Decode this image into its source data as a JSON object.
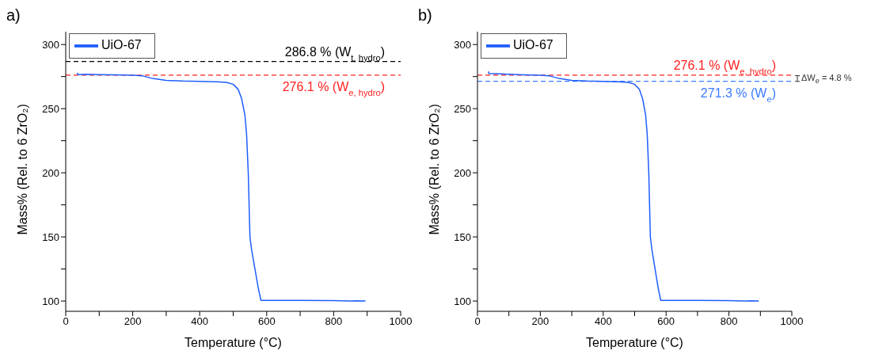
{
  "chart_data": [
    {
      "type": "line",
      "title": "a)",
      "xlabel": "Temperature (°C)",
      "ylabel": "Mass% (Rel. to 6 ZrO₂)",
      "xlim": [
        0,
        1000
      ],
      "xticks": [
        0,
        {
          "value": 100,
          "label": null
        },
        200,
        {
          "value": 300,
          "label": null
        },
        400,
        {
          "value": 500,
          "label": null
        },
        600,
        {
          "value": 700,
          "label": null
        },
        800,
        {
          "value": 900,
          "label": null
        },
        1000
      ],
      "ylim": [
        92,
        310
      ],
      "yticks": [
        100,
        {
          "value": 125,
          "label": null
        },
        150,
        {
          "value": 175,
          "label": null
        },
        200,
        {
          "value": 225,
          "label": null
        },
        250,
        {
          "value": 275,
          "label": null
        },
        300
      ],
      "grid": false,
      "legend": "top left",
      "line_style": "solid",
      "marker": "none",
      "series": [
        {
          "name": "UiO-67",
          "color": "#1f5eff",
          "x": [
            35,
            36,
            60,
            100,
            150,
            200,
            230,
            260,
            300,
            350,
            400,
            450,
            480,
            500,
            515,
            525,
            535,
            540,
            545,
            548,
            550,
            555,
            565,
            575,
            583,
            600,
            700,
            800,
            850,
            870,
            895
          ],
          "values": [
            278,
            276.5,
            276.8,
            276.5,
            276.3,
            276,
            275.5,
            273.5,
            272,
            271.5,
            271.3,
            271,
            270.5,
            269,
            265,
            258,
            245,
            230,
            200,
            170,
            150,
            140,
            125,
            110,
            100.5,
            100.5,
            100.5,
            100.3,
            100,
            100.2,
            100
          ]
        }
      ],
      "ref_lines": [
        {
          "axis": "y",
          "value": 286.8,
          "label": "286.8 % (W$_{t, hydro}$)",
          "color": "#000000",
          "line_style": "dashed"
        },
        {
          "axis": "y",
          "value": 276.1,
          "label": "276.1 % (W$_{e, hydro}$)",
          "color": "#ff2020",
          "line_style": "dashed"
        }
      ]
    },
    {
      "type": "line",
      "title": "b)",
      "xlabel": "Temperature (°C)",
      "ylabel": "Mass% (Rel. to 6 ZrO₂)",
      "xlim": [
        0,
        1000
      ],
      "xticks": [
        0,
        {
          "value": 100,
          "label": null
        },
        200,
        {
          "value": 300,
          "label": null
        },
        400,
        {
          "value": 500,
          "label": null
        },
        600,
        {
          "value": 700,
          "label": null
        },
        800,
        {
          "value": 900,
          "label": null
        },
        1000
      ],
      "ylim": [
        92,
        310
      ],
      "yticks": [
        100,
        {
          "value": 125,
          "label": null
        },
        150,
        {
          "value": 175,
          "label": null
        },
        200,
        {
          "value": 225,
          "label": null
        },
        250,
        {
          "value": 275,
          "label": null
        },
        300
      ],
      "grid": false,
      "legend": "top left",
      "line_style": "solid",
      "marker": "none",
      "series": [
        {
          "name": "UiO-67",
          "color": "#1f5eff",
          "x": [
            35,
            36,
            60,
            100,
            150,
            200,
            230,
            260,
            300,
            350,
            400,
            450,
            480,
            500,
            515,
            525,
            535,
            540,
            545,
            548,
            550,
            555,
            565,
            575,
            583,
            600,
            700,
            800,
            850,
            870,
            895
          ],
          "values": [
            279,
            277.5,
            277.3,
            276.8,
            276.4,
            276,
            275.5,
            273.5,
            272,
            271.5,
            271.3,
            271,
            270.5,
            269,
            265,
            258,
            245,
            230,
            200,
            170,
            150,
            140,
            125,
            110,
            100.5,
            100.5,
            100.5,
            100.3,
            100,
            100.2,
            100
          ]
        }
      ],
      "ref_lines": [
        {
          "axis": "y",
          "value": 276.1,
          "label": "276.1 % (W$_{e, hydro}$)",
          "color": "#ff2020",
          "line_style": "dashed"
        },
        {
          "axis": "y",
          "value": 271.3,
          "label": "271.3 % (W$_{e}$)",
          "color": "#3a7bff",
          "line_style": "dashed"
        }
      ],
      "annotations": [
        "ΔW$_{e}$ = 4.8 %"
      ]
    }
  ]
}
